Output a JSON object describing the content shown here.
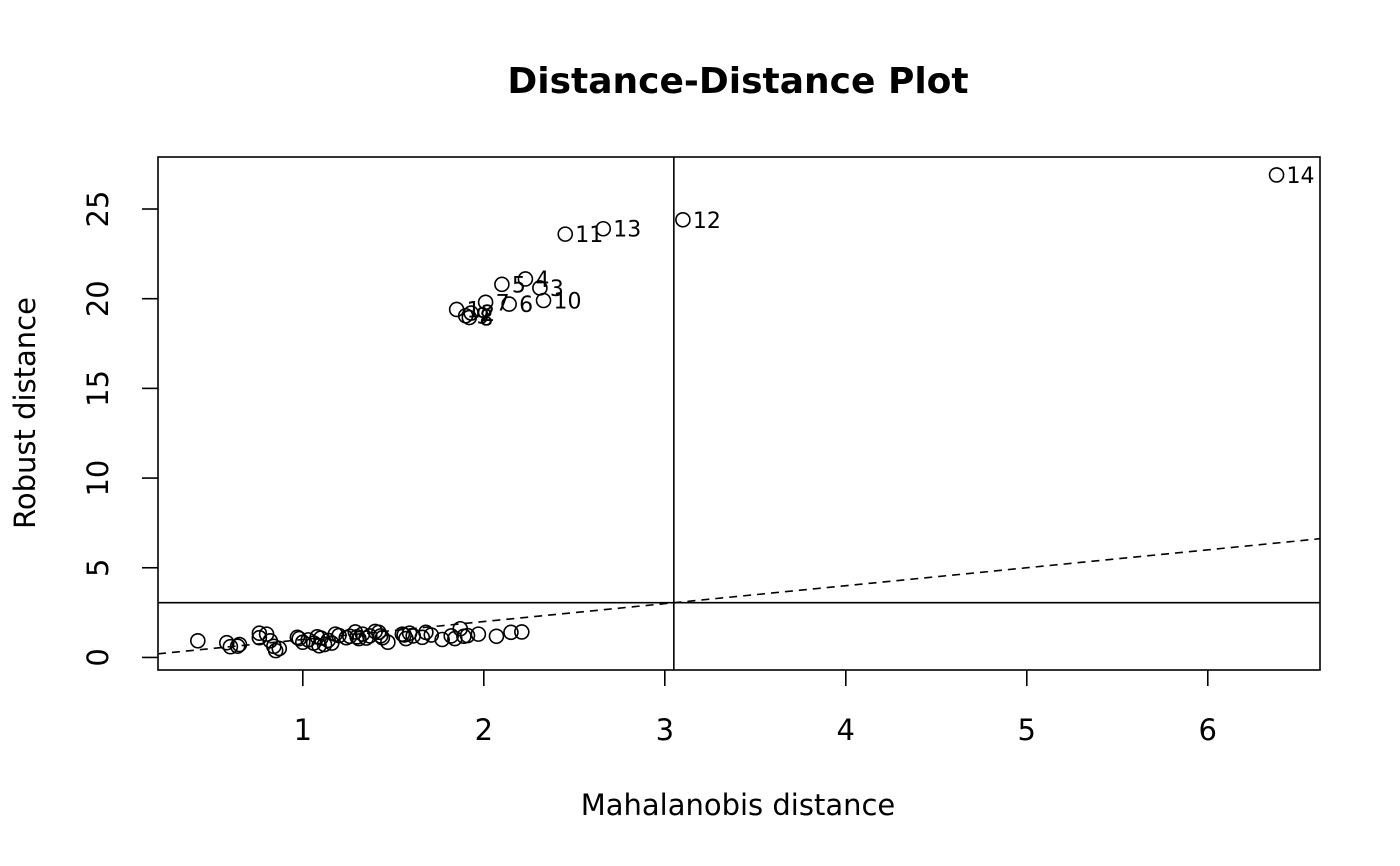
{
  "chart_data": {
    "type": "scatter",
    "title": "Distance-Distance Plot",
    "xlabel": "Mahalanobis distance",
    "ylabel": "Robust distance",
    "xlim": [
      0.2,
      6.62
    ],
    "ylim": [
      -0.7,
      27.9
    ],
    "xticks": [
      1,
      2,
      3,
      4,
      5,
      6
    ],
    "yticks": [
      0,
      5,
      10,
      15,
      20,
      25
    ],
    "grid": false,
    "cutoff_x": 3.05,
    "cutoff_y": 3.05,
    "reference_line": {
      "slope": 1,
      "intercept": 0,
      "style": "dashed"
    },
    "labeled_points": [
      {
        "label": "14",
        "x": 6.38,
        "y": 26.9
      },
      {
        "label": "12",
        "x": 3.1,
        "y": 24.4
      },
      {
        "label": "13",
        "x": 2.66,
        "y": 23.9
      },
      {
        "label": "11",
        "x": 2.45,
        "y": 23.6
      },
      {
        "label": "4",
        "x": 2.23,
        "y": 21.1
      },
      {
        "label": "5",
        "x": 2.1,
        "y": 20.8
      },
      {
        "label": "3",
        "x": 2.31,
        "y": 20.6
      },
      {
        "label": "7",
        "x": 2.01,
        "y": 19.8
      },
      {
        "label": "10",
        "x": 2.33,
        "y": 19.9
      },
      {
        "label": "6",
        "x": 2.14,
        "y": 19.7
      },
      {
        "label": "2",
        "x": 1.93,
        "y": 19.2
      },
      {
        "label": "1",
        "x": 1.85,
        "y": 19.4
      },
      {
        "label": "8",
        "x": 1.92,
        "y": 18.95
      },
      {
        "label": "9",
        "x": 1.9,
        "y": 19.05
      }
    ],
    "points": [
      {
        "x": 0.42,
        "y": 0.93
      },
      {
        "x": 0.58,
        "y": 0.82
      },
      {
        "x": 0.6,
        "y": 0.6
      },
      {
        "x": 0.64,
        "y": 0.63
      },
      {
        "x": 0.65,
        "y": 0.72
      },
      {
        "x": 0.76,
        "y": 1.35
      },
      {
        "x": 0.76,
        "y": 1.1
      },
      {
        "x": 0.8,
        "y": 1.3
      },
      {
        "x": 0.82,
        "y": 0.93
      },
      {
        "x": 0.84,
        "y": 0.62
      },
      {
        "x": 0.85,
        "y": 0.38
      },
      {
        "x": 0.87,
        "y": 0.5
      },
      {
        "x": 0.97,
        "y": 1.12
      },
      {
        "x": 0.98,
        "y": 1.05
      },
      {
        "x": 1.0,
        "y": 0.85
      },
      {
        "x": 1.03,
        "y": 0.98
      },
      {
        "x": 1.06,
        "y": 0.8
      },
      {
        "x": 1.08,
        "y": 1.15
      },
      {
        "x": 1.09,
        "y": 0.65
      },
      {
        "x": 1.1,
        "y": 1.08
      },
      {
        "x": 1.12,
        "y": 0.72
      },
      {
        "x": 1.14,
        "y": 0.95
      },
      {
        "x": 1.16,
        "y": 0.8
      },
      {
        "x": 1.18,
        "y": 1.3
      },
      {
        "x": 1.2,
        "y": 1.22
      },
      {
        "x": 1.24,
        "y": 1.1
      },
      {
        "x": 1.26,
        "y": 1.18
      },
      {
        "x": 1.29,
        "y": 1.42
      },
      {
        "x": 1.3,
        "y": 1.15
      },
      {
        "x": 1.31,
        "y": 1.05
      },
      {
        "x": 1.33,
        "y": 1.3
      },
      {
        "x": 1.35,
        "y": 1.08
      },
      {
        "x": 1.37,
        "y": 1.2
      },
      {
        "x": 1.4,
        "y": 1.45
      },
      {
        "x": 1.42,
        "y": 1.4
      },
      {
        "x": 1.43,
        "y": 1.2
      },
      {
        "x": 1.44,
        "y": 1.1
      },
      {
        "x": 1.47,
        "y": 0.85
      },
      {
        "x": 1.55,
        "y": 1.3
      },
      {
        "x": 1.56,
        "y": 1.25
      },
      {
        "x": 1.57,
        "y": 1.05
      },
      {
        "x": 1.59,
        "y": 1.35
      },
      {
        "x": 1.61,
        "y": 1.2
      },
      {
        "x": 1.66,
        "y": 1.12
      },
      {
        "x": 1.68,
        "y": 1.4
      },
      {
        "x": 1.71,
        "y": 1.25
      },
      {
        "x": 1.77,
        "y": 1.0
      },
      {
        "x": 1.82,
        "y": 1.2
      },
      {
        "x": 1.84,
        "y": 1.05
      },
      {
        "x": 1.87,
        "y": 1.6
      },
      {
        "x": 1.89,
        "y": 1.18
      },
      {
        "x": 1.91,
        "y": 1.22
      },
      {
        "x": 1.97,
        "y": 1.3
      },
      {
        "x": 2.07,
        "y": 1.18
      },
      {
        "x": 2.15,
        "y": 1.4
      },
      {
        "x": 2.21,
        "y": 1.42
      }
    ]
  }
}
